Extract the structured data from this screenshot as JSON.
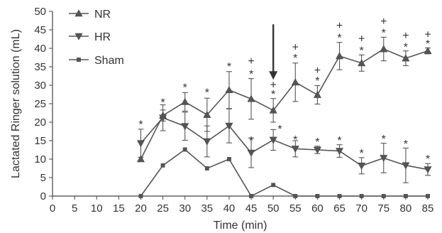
{
  "chart_data": {
    "type": "line",
    "title": "",
    "xlabel": "Time (min)",
    "ylabel": "Lactated Ringer solution (mL)",
    "xlim": [
      0,
      85
    ],
    "ylim": [
      0,
      50
    ],
    "x_ticks": [
      "0",
      "5",
      "10",
      "15",
      "20",
      "25",
      "30",
      "35",
      "40",
      "45",
      "50",
      "55",
      "60",
      "65",
      "70",
      "75",
      "80",
      "85"
    ],
    "y_ticks": [
      "0",
      "5",
      "10",
      "15",
      "20",
      "25",
      "30",
      "35",
      "40",
      "45",
      "50"
    ],
    "legend_position": "top-left",
    "grid": false,
    "series": [
      {
        "name": "NR",
        "marker": "triangle-up",
        "x": [
          20,
          25,
          30,
          35,
          40,
          45,
          50,
          55,
          60,
          65,
          70,
          75,
          80,
          85
        ],
        "y": [
          10,
          21.8,
          25.5,
          22,
          28.7,
          26.3,
          23.2,
          30.8,
          27.4,
          37.9,
          36,
          39.8,
          37.3,
          39.3
        ],
        "err": [
          0,
          1.5,
          2.5,
          4.5,
          5,
          5.5,
          3.2,
          5.2,
          2.5,
          3.7,
          2.2,
          3.2,
          2,
          0.8
        ]
      },
      {
        "name": "HR",
        "marker": "triangle-down",
        "x": [
          20,
          25,
          30,
          35,
          40,
          45,
          50,
          55,
          60,
          65,
          70,
          75,
          80,
          85
        ],
        "y": [
          14.3,
          21.2,
          18.9,
          14.8,
          19,
          11.7,
          15.2,
          12.8,
          12.5,
          12.2,
          8.2,
          10.3,
          8.3,
          7.2
        ],
        "err": [
          3.8,
          3.5,
          3.8,
          4.2,
          4.6,
          4,
          2.8,
          2.2,
          1,
          1.7,
          2.2,
          4,
          4.7,
          1.6
        ]
      },
      {
        "name": "Sham",
        "marker": "square",
        "x": [
          20,
          25,
          30,
          35,
          40,
          45,
          50,
          55,
          60,
          65,
          70,
          75,
          80,
          85
        ],
        "y": [
          0,
          8.3,
          12.6,
          7.5,
          10,
          0,
          3,
          0,
          0,
          0,
          0,
          0,
          0,
          0
        ],
        "err": [
          0,
          0,
          0,
          0,
          0,
          0,
          0,
          0,
          0,
          0,
          0,
          0,
          0,
          0
        ]
      }
    ],
    "annotations": {
      "arrow_at_x": 50,
      "arrow_from_y": 46.5,
      "arrow_to_y": 31.5,
      "significance": [
        {
          "x": 20,
          "y": 19.5,
          "text": "*"
        },
        {
          "x": 25,
          "y": 25.5,
          "text": "*"
        },
        {
          "x": 30,
          "y": 29.5,
          "text": "*"
        },
        {
          "x": 35,
          "y": 28.2,
          "text": "*"
        },
        {
          "x": 40,
          "y": 35.2,
          "text": "*"
        },
        {
          "x": 45,
          "y": 33.2,
          "text": "*"
        },
        {
          "x": 45,
          "y": 36.7,
          "text": "+"
        },
        {
          "x": 50,
          "y": 27.7,
          "text": "*"
        },
        {
          "x": 50,
          "y": 30.3,
          "text": "+"
        },
        {
          "x": 55,
          "y": 37.5,
          "text": "*"
        },
        {
          "x": 55,
          "y": 40.5,
          "text": "+"
        },
        {
          "x": 60,
          "y": 31.3,
          "text": "*"
        },
        {
          "x": 60,
          "y": 34.2,
          "text": "+"
        },
        {
          "x": 65,
          "y": 43,
          "text": "*"
        },
        {
          "x": 65,
          "y": 46.3,
          "text": "+"
        },
        {
          "x": 70,
          "y": 39.5,
          "text": "*"
        },
        {
          "x": 70,
          "y": 42.8,
          "text": "+"
        },
        {
          "x": 75,
          "y": 44.3,
          "text": "*"
        },
        {
          "x": 75,
          "y": 47.5,
          "text": "+"
        },
        {
          "x": 80,
          "y": 40.5,
          "text": "*"
        },
        {
          "x": 80,
          "y": 43.7,
          "text": "+"
        },
        {
          "x": 85,
          "y": 41.3,
          "text": "*"
        },
        {
          "x": 85,
          "y": 43.9,
          "text": "+"
        },
        {
          "x": 45,
          "y": 15.2,
          "text": "*"
        },
        {
          "x": 51.5,
          "y": 18.3,
          "text": "*"
        },
        {
          "x": 55,
          "y": 15.4,
          "text": "*"
        },
        {
          "x": 60,
          "y": 14.8,
          "text": "*"
        },
        {
          "x": 65,
          "y": 15.2,
          "text": "*"
        },
        {
          "x": 70,
          "y": 11.7,
          "text": "*"
        },
        {
          "x": 75,
          "y": 15.6,
          "text": "*"
        },
        {
          "x": 80,
          "y": 14.2,
          "text": "*"
        },
        {
          "x": 85,
          "y": 10.2,
          "text": "*"
        }
      ]
    }
  }
}
